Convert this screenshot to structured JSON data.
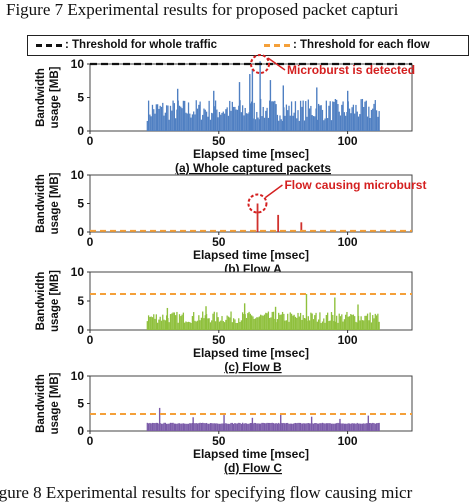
{
  "figure_captions": {
    "top": "Figure 7    Experimental results for proposed packet capturi",
    "bottom": "igure 8    Experimental results for specifying flow causing micr"
  },
  "legend": [
    {
      "label": ": Threshold for whole traffic",
      "color": "#111111",
      "style": "dashed"
    },
    {
      "label": ": Threshold for each flow",
      "color": "#f4a03a",
      "style": "dashed"
    }
  ],
  "colors": {
    "whole": "#4f7fc2",
    "flowA": "#d0312d",
    "flowB": "#8fc03c",
    "flowC": "#7a5aa8",
    "threshold_whole": "#111111",
    "threshold_flow": "#f4a03a",
    "marker": "#d42020"
  },
  "chart_data": [
    {
      "type": "bar",
      "title": "(a) Whole captured packets",
      "xlabel": "Elapsed time [msec]",
      "ylabel": "Bandwidth usage [MB]",
      "xlim": [
        0,
        125
      ],
      "ylim": [
        0,
        10
      ],
      "xticks": [
        0,
        50,
        100
      ],
      "yticks": [
        0,
        5,
        10
      ],
      "threshold": 10,
      "data_range": [
        22,
        112
      ],
      "typical_range": [
        1.5,
        4.8
      ],
      "spikes": [
        {
          "x": 62,
          "y": 8.5
        },
        {
          "x": 63,
          "y": 9.2
        },
        {
          "x": 66,
          "y": 10.4
        },
        {
          "x": 70,
          "y": 7.6
        },
        {
          "x": 75,
          "y": 6.8
        },
        {
          "x": 34,
          "y": 6.3
        },
        {
          "x": 48,
          "y": 6.0
        },
        {
          "x": 58,
          "y": 7.3
        },
        {
          "x": 88,
          "y": 6.5
        },
        {
          "x": 100,
          "y": 6.0
        }
      ],
      "annotation": "Microburst is detected",
      "annotation_x": 66
    },
    {
      "type": "bar",
      "title": "(b) Flow A",
      "xlabel": "Elapsed time [msec]",
      "ylabel": "Bandwidth usage [MB]",
      "xlim": [
        0,
        125
      ],
      "ylim": [
        0,
        10
      ],
      "xticks": [
        0,
        50,
        100
      ],
      "yticks": [
        0,
        5,
        10
      ],
      "threshold": 0.2,
      "values": [
        {
          "x": 65,
          "y": 5.0
        },
        {
          "x": 73,
          "y": 3.0
        },
        {
          "x": 82,
          "y": 1.7
        }
      ],
      "annotation": "Flow causing microburst",
      "annotation_x": 65
    },
    {
      "type": "bar",
      "title": "(c) Flow B",
      "xlabel": "Elapsed time [msec]",
      "ylabel": "Bandwidth usage [MB]",
      "xlim": [
        0,
        125
      ],
      "ylim": [
        0,
        10
      ],
      "xticks": [
        0,
        50,
        100
      ],
      "yticks": [
        0,
        5,
        10
      ],
      "threshold": 6.2,
      "data_range": [
        22,
        112
      ],
      "typical_range": [
        1.2,
        3.2
      ],
      "spikes": [
        {
          "x": 30,
          "y": 3.8
        },
        {
          "x": 45,
          "y": 4.1
        },
        {
          "x": 60,
          "y": 4.6
        },
        {
          "x": 72,
          "y": 4.0
        },
        {
          "x": 84,
          "y": 6.2
        },
        {
          "x": 95,
          "y": 5.6
        },
        {
          "x": 104,
          "y": 4.4
        }
      ]
    },
    {
      "type": "bar",
      "title": "(d) Flow C",
      "xlabel": "Elapsed time [msec]",
      "ylabel": "Bandwidth usage [MB]",
      "xlim": [
        0,
        125
      ],
      "ylim": [
        0,
        10
      ],
      "xticks": [
        0,
        50,
        100
      ],
      "yticks": [
        0,
        5,
        10
      ],
      "threshold": 3.1,
      "data_range": [
        22,
        112
      ],
      "typical_range": [
        1.3,
        1.5
      ],
      "spikes": [
        {
          "x": 27,
          "y": 4.2
        },
        {
          "x": 40,
          "y": 2.5
        },
        {
          "x": 52,
          "y": 2.9
        },
        {
          "x": 63,
          "y": 2.4
        },
        {
          "x": 74,
          "y": 3.0
        },
        {
          "x": 86,
          "y": 2.6
        },
        {
          "x": 97,
          "y": 2.2
        },
        {
          "x": 108,
          "y": 2.8
        }
      ]
    }
  ]
}
